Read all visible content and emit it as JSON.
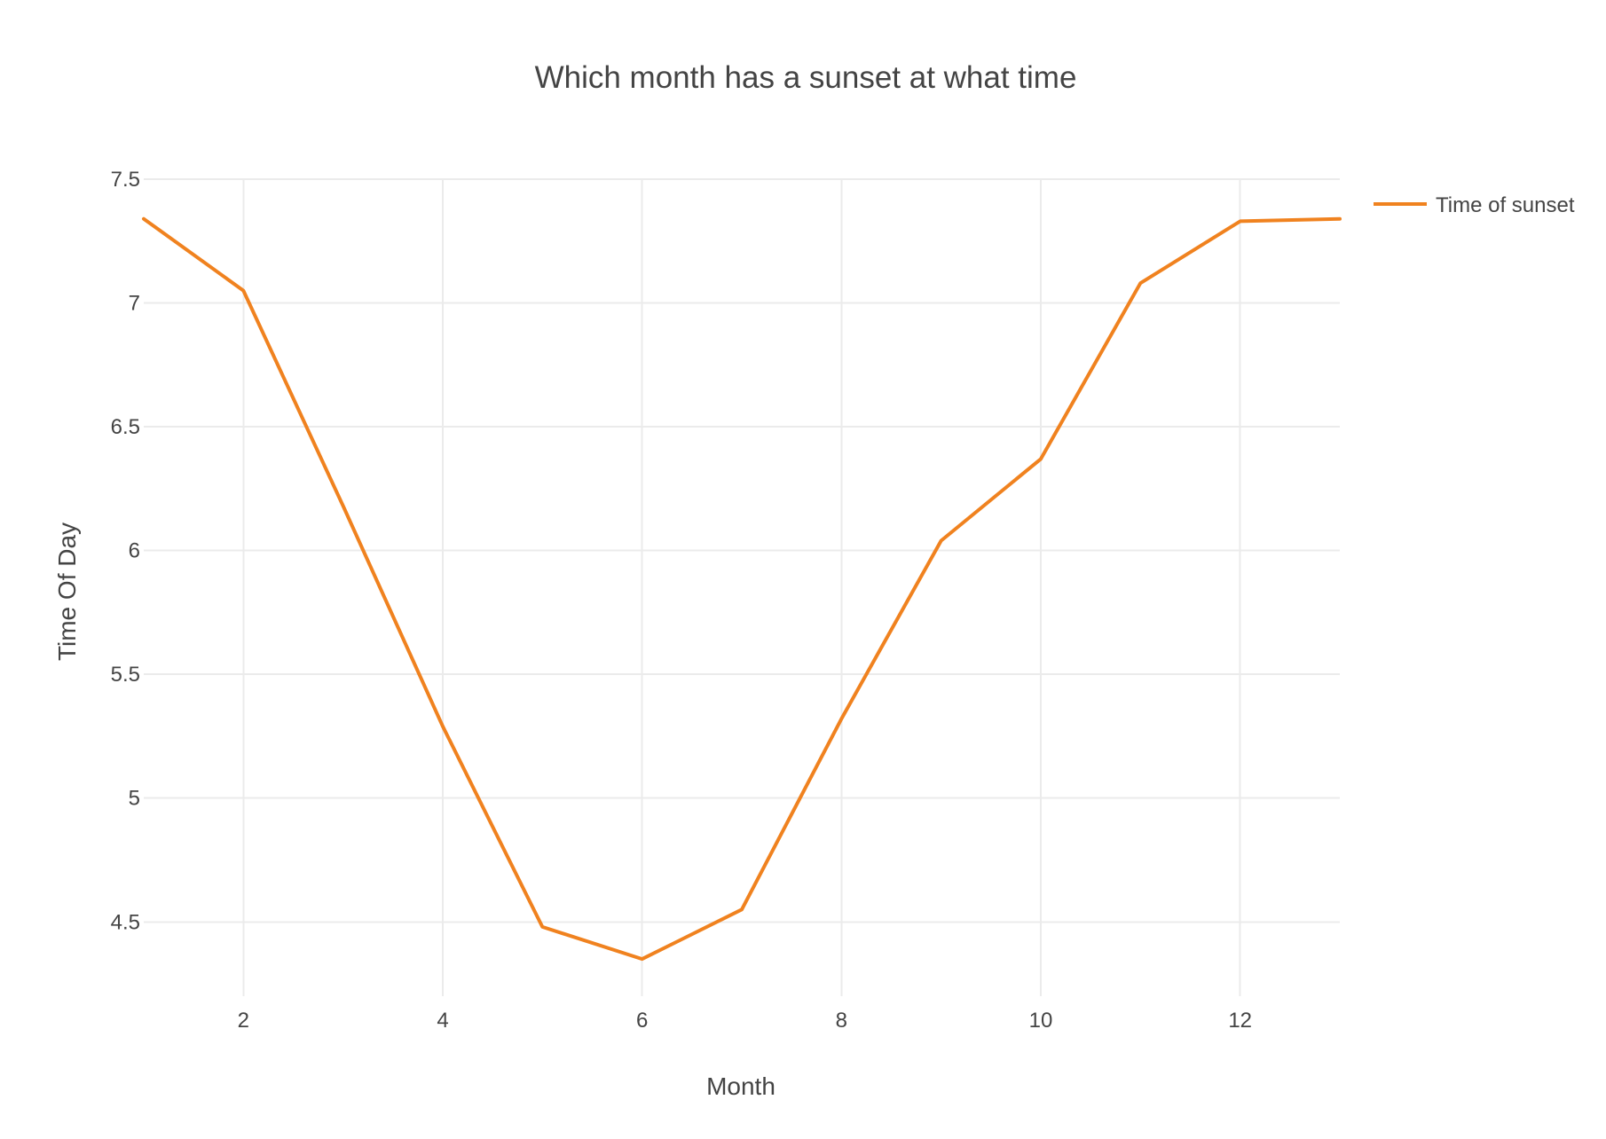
{
  "chart_data": {
    "type": "line",
    "title": "Which month has a sunset at what time",
    "xlabel": "Month",
    "ylabel": "Time Of Day",
    "xlim": [
      1,
      13
    ],
    "ylim": [
      4.2,
      7.5
    ],
    "x_ticks": [
      2,
      4,
      6,
      8,
      10,
      12
    ],
    "y_ticks": [
      4.5,
      5,
      5.5,
      6,
      6.5,
      7,
      7.5
    ],
    "x_tick_labels": [
      "2",
      "4",
      "6",
      "8",
      "10",
      "12"
    ],
    "y_tick_labels": [
      "4.5",
      "5",
      "5.5",
      "6",
      "6.5",
      "7",
      "7.5"
    ],
    "grid": true,
    "legend_position": "top-right",
    "series": [
      {
        "name": "Time of sunset",
        "color": "#f0821f",
        "x": [
          1,
          2,
          3,
          4,
          5,
          6,
          7,
          8,
          9,
          10,
          11,
          12,
          13
        ],
        "y": [
          7.34,
          7.05,
          6.18,
          5.29,
          4.48,
          4.35,
          4.55,
          5.32,
          6.04,
          6.37,
          7.08,
          7.33,
          7.34
        ]
      }
    ]
  }
}
